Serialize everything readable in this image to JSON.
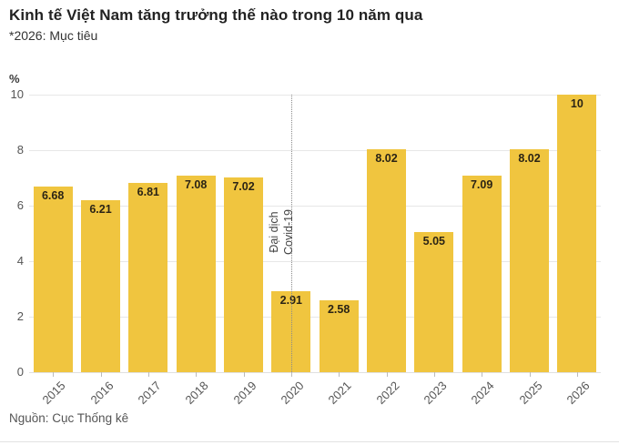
{
  "page": {
    "title": "Kinh tế Việt Nam tăng trưởng thế nào trong 10 năm qua",
    "subtitle": "*2026: Mục tiêu",
    "source": "Nguồn: Cục Thống kê"
  },
  "chart_data": {
    "type": "bar",
    "title": "Kinh tế Việt Nam tăng trưởng thế nào trong 10 năm qua",
    "subtitle": "*2026: Mục tiêu",
    "ylabel": "%",
    "xlabel": "",
    "categories": [
      "2015",
      "2016",
      "2017",
      "2018",
      "2019",
      "2020",
      "2021",
      "2022",
      "2023",
      "2024",
      "2025",
      "2026"
    ],
    "values": [
      6.68,
      6.21,
      6.81,
      7.08,
      7.02,
      2.91,
      2.58,
      8.02,
      5.05,
      7.09,
      8.02,
      10
    ],
    "value_labels": [
      "6.68",
      "6.21",
      "6.81",
      "7.08",
      "7.02",
      "2.91",
      "2.58",
      "8.02",
      "5.05",
      "7.09",
      "8.02",
      "10"
    ],
    "ylim": [
      0,
      10
    ],
    "yticks": [
      0,
      2,
      4,
      6,
      8,
      10
    ],
    "grid": true,
    "legend": "none",
    "bar_color": "#F0C53F",
    "value_label_color": "#2b2415",
    "annotation": {
      "lines": [
        "Đại dịch",
        "Covid-19"
      ],
      "at_category": "2020",
      "line_style": "dotted"
    },
    "source": "Nguồn: Cục Thống kê"
  }
}
